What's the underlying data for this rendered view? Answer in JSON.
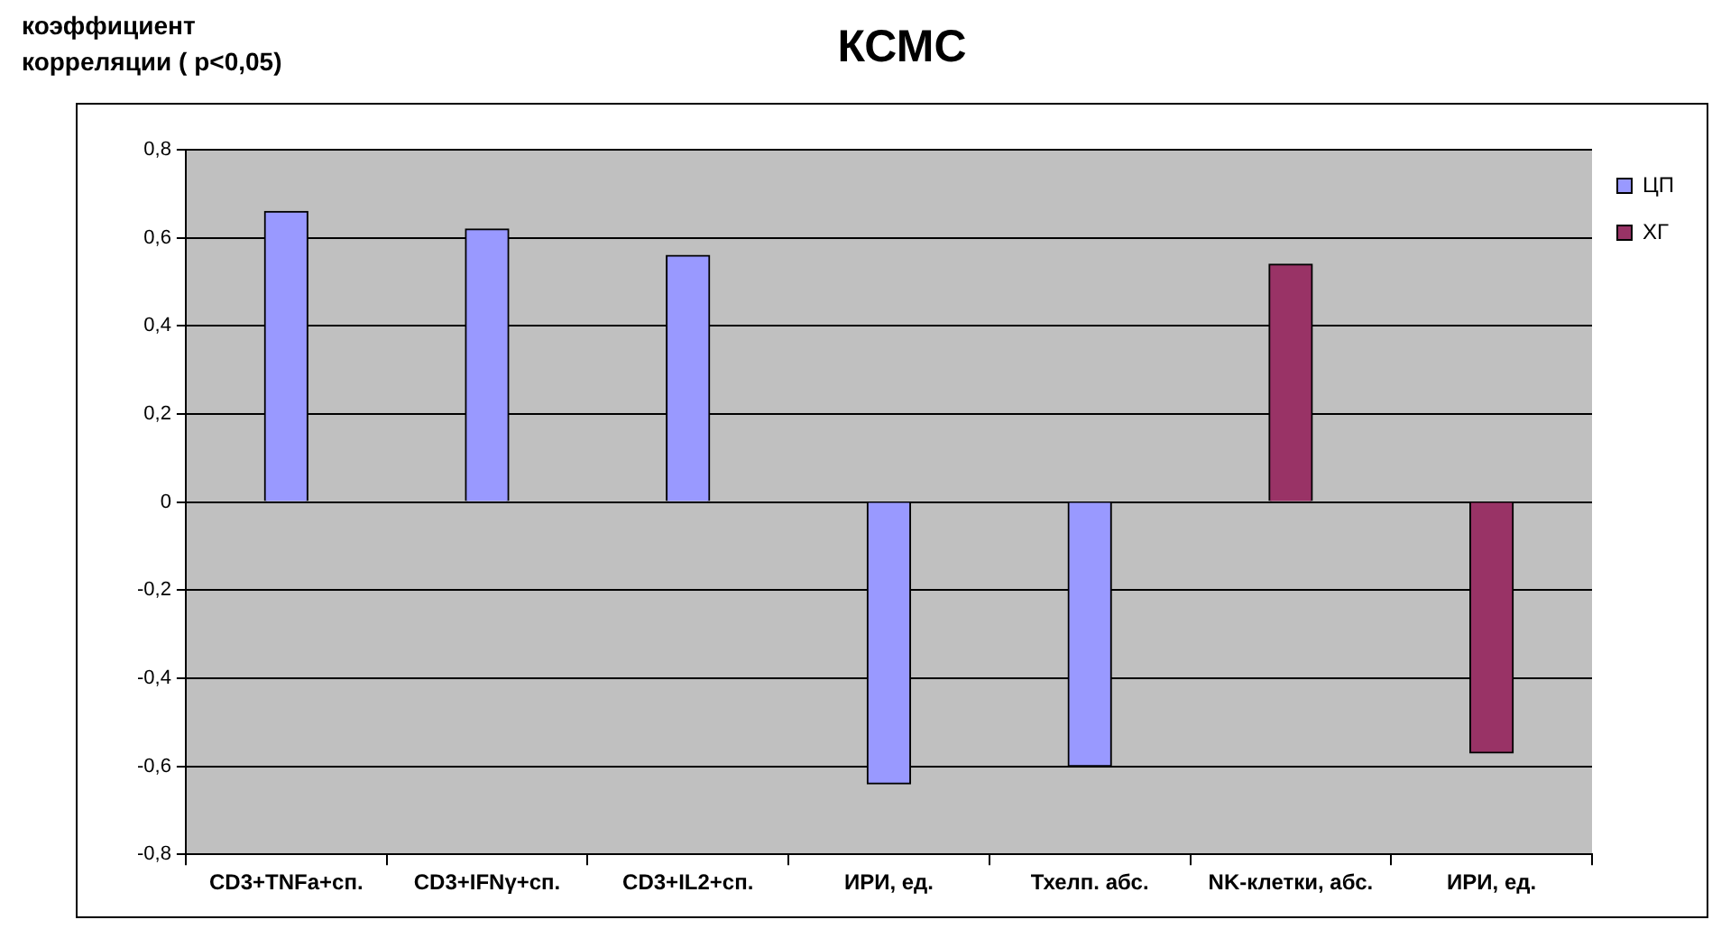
{
  "chart_data": {
    "type": "bar",
    "title": "КСМС",
    "ylabel": "коэффициент корреляции ( p<0,05)",
    "categories": [
      "CD3+TNFa+сп.",
      "CD3+IFNγ+сп.",
      "CD3+IL2+сп.",
      "ИРИ, ед.",
      "Тхелп. абс.",
      "NK-клетки, абс.",
      "ИРИ, ед."
    ],
    "series": [
      {
        "name": "ЦП",
        "color": "#9999ff",
        "values": [
          0.66,
          0.62,
          0.56,
          -0.64,
          -0.6,
          null,
          null
        ]
      },
      {
        "name": "ХГ",
        "color": "#993366",
        "values": [
          null,
          null,
          null,
          null,
          null,
          0.54,
          -0.57
        ]
      }
    ],
    "ylim": [
      -0.8,
      0.8
    ],
    "yticks": [
      {
        "value": 0.8,
        "label": "0,8"
      },
      {
        "value": 0.6,
        "label": "0,6"
      },
      {
        "value": 0.4,
        "label": "0,4"
      },
      {
        "value": 0.2,
        "label": "0,2"
      },
      0,
      {
        "value": -0.2,
        "label": "-0,2"
      },
      {
        "value": -0.4,
        "label": "-0,4"
      },
      {
        "value": -0.6,
        "label": "-0,6"
      },
      {
        "value": -0.8,
        "label": "-0,8"
      }
    ],
    "grid": "y",
    "legend": "right"
  }
}
